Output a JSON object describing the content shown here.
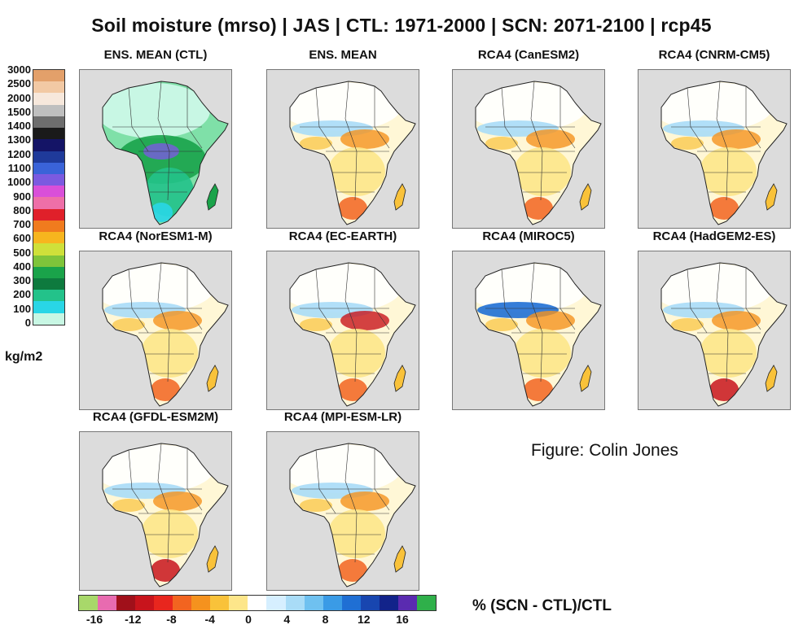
{
  "title": "Soil moisture (mrso) | JAS | CTL: 1971-2000 |  SCN: 2071-2100 | rcp45",
  "panels": [
    {
      "label": "ENS. MEAN (CTL)",
      "kind": "ctl"
    },
    {
      "label": "ENS. MEAN",
      "kind": "anom"
    },
    {
      "label": "RCA4 (CanESM2)",
      "kind": "anom"
    },
    {
      "label": "RCA4 (CNRM-CM5)",
      "kind": "anom"
    },
    {
      "label": "RCA4 (NorESM1-M)",
      "kind": "anom"
    },
    {
      "label": "RCA4 (EC-EARTH)",
      "kind": "anom"
    },
    {
      "label": "RCA4 (MIROC5)",
      "kind": "anom"
    },
    {
      "label": "RCA4 (HadGEM2-ES)",
      "kind": "anom"
    },
    {
      "label": "RCA4 (GFDL-ESM2M)",
      "kind": "anom"
    },
    {
      "label": "RCA4 (MPI-ESM-LR)",
      "kind": "anom"
    }
  ],
  "abs_colorbar": {
    "ticks": [
      "3000",
      "2500",
      "2000",
      "1500",
      "1400",
      "1300",
      "1200",
      "1100",
      "1000",
      "900",
      "800",
      "700",
      "600",
      "500",
      "400",
      "300",
      "200",
      "100",
      "0"
    ],
    "colors": [
      "#e3a06a",
      "#f2c9a4",
      "#f7e8dc",
      "#bfbfbf",
      "#6e6e6e",
      "#1a1a1a",
      "#141466",
      "#1f3a9a",
      "#3a63d8",
      "#7b5ae0",
      "#d94fd9",
      "#ee6fa8",
      "#e0202a",
      "#f07b1e",
      "#f7b51e",
      "#cfe03a",
      "#7fc43a",
      "#1aa34a",
      "#0e7a3e",
      "#23c28a",
      "#29d6e6",
      "#c8f7e4"
    ],
    "unit": "kg/m2"
  },
  "anom_colorbar": {
    "ticks": [
      "-16",
      "-12",
      "-8",
      "-4",
      "0",
      "4",
      "8",
      "12",
      "16"
    ],
    "colors": [
      "#a8d86a",
      "#e86bb0",
      "#a0101a",
      "#c8141c",
      "#e8261e",
      "#f26420",
      "#f5921e",
      "#f9c23a",
      "#fde68a",
      "#ffffff",
      "#d6efff",
      "#a9dcf7",
      "#6fc1f0",
      "#3a9be6",
      "#1f6fd4",
      "#1846b0",
      "#12238a",
      "#5a2bb0",
      "#2fb04a"
    ],
    "label": "%  (SCN - CTL)/CTL"
  },
  "credit": "Figure: Colin Jones"
}
